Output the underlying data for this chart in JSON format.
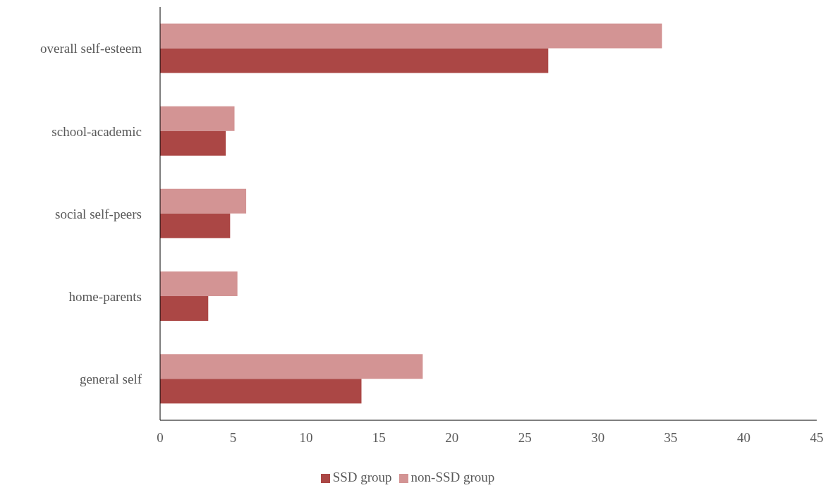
{
  "chart_data": {
    "type": "bar",
    "orientation": "horizontal",
    "categories": [
      "overall self-esteem",
      "school-academic",
      "social self-peers",
      "home-parents",
      "general self"
    ],
    "series": [
      {
        "name": "non-SSD group",
        "color": "#d39494",
        "values": [
          34.4,
          5.1,
          5.9,
          5.3,
          18.0
        ]
      },
      {
        "name": "SSD group",
        "color": "#ab4745",
        "values": [
          26.6,
          4.5,
          4.8,
          3.3,
          13.8
        ]
      }
    ],
    "xlim": [
      0,
      45
    ],
    "xticks": [
      0,
      5,
      10,
      15,
      20,
      25,
      30,
      35,
      40,
      45
    ],
    "grid": false,
    "legend": "bottom"
  }
}
